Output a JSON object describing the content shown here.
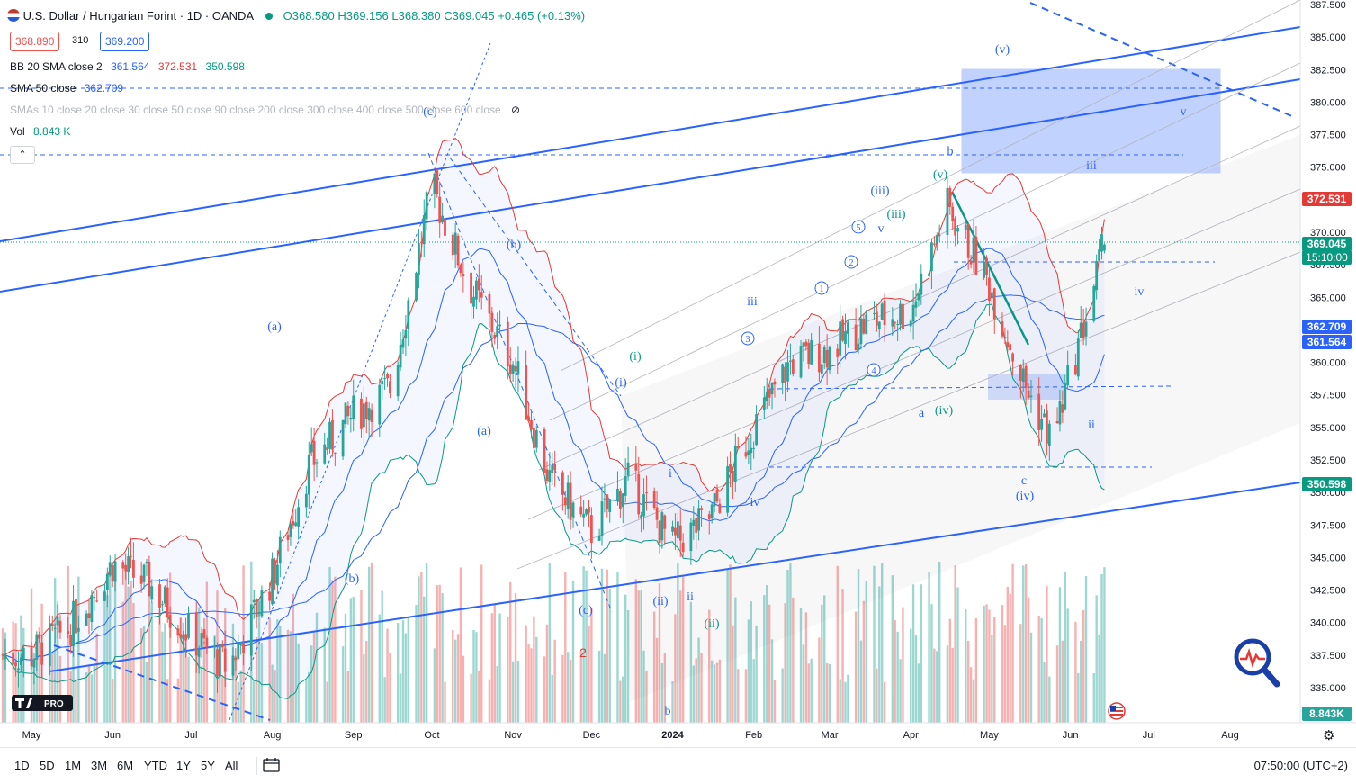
{
  "header": {
    "symbol_title": "U.S. Dollar / Hungarian Forint · 1D · OANDA",
    "open": "O368.580",
    "high": "H369.156",
    "low": "L368.380",
    "close": "C369.045",
    "change": "+0.465 (+0.13%)",
    "bid": "368.890",
    "spread": "310",
    "ask": "369.200"
  },
  "indicators": {
    "bb_label": "BB 20 SMA close 2",
    "bb_mid": "361.564",
    "bb_upper": "372.531",
    "bb_lower": "350.598",
    "sma50_label": "SMA 50 close",
    "sma50_value": "362.709",
    "smas_label": "SMAs 10 close 20 close 30 close 50 close 90 close 200 close 300 close 400 close 500 close 600 close",
    "vol_label": "Vol",
    "vol_value": "8.843 K"
  },
  "price_tags": {
    "bb_upper": "372.531",
    "last": "369.045",
    "countdown": "15:10:00",
    "sma50": "362.709",
    "bb_mid": "361.564",
    "bb_lower": "350.598",
    "volume": "8.843K"
  },
  "toolbar": {
    "timeframes": [
      "1D",
      "5D",
      "1M",
      "3M",
      "6M",
      "YTD",
      "1Y",
      "5Y",
      "All"
    ],
    "clock": "07:50:00 (UTC+2)"
  },
  "colors": {
    "up": "#26a69a",
    "down": "#ef5350",
    "wave": "#2962ff",
    "bb_upper": "#e53935",
    "bb_lower": "#089981",
    "sma": "#2962ff"
  },
  "chart_data": {
    "type": "candlestick",
    "y_axis_ticks": [
      "387.500",
      "385.000",
      "382.500",
      "380.000",
      "377.500",
      "375.000",
      "372.500",
      "370.000",
      "367.500",
      "365.000",
      "362.500",
      "360.000",
      "357.500",
      "355.000",
      "352.500",
      "350.000",
      "347.500",
      "345.000",
      "342.500",
      "340.000",
      "337.500",
      "335.000"
    ],
    "ylim": [
      333.5,
      387.5
    ],
    "x_axis_labels": [
      "May",
      "Jun",
      "Jul",
      "Aug",
      "Sep",
      "Oct",
      "Nov",
      "Dec",
      "2024",
      "Feb",
      "Mar",
      "Apr",
      "May",
      "Jun",
      "Jul",
      "Aug"
    ],
    "close_path": [
      {
        "date": "2023-05-01",
        "close": 337.5
      },
      {
        "date": "2023-05-15",
        "close": 339.5
      },
      {
        "date": "2023-06-01",
        "close": 344.5
      },
      {
        "date": "2023-06-15",
        "close": 343.0
      },
      {
        "date": "2023-07-01",
        "close": 339.0
      },
      {
        "date": "2023-07-15",
        "close": 336.5
      },
      {
        "date": "2023-08-01",
        "close": 343.5
      },
      {
        "date": "2023-08-15",
        "close": 352.0
      },
      {
        "date": "2023-09-01",
        "close": 356.0
      },
      {
        "date": "2023-09-15",
        "close": 358.0
      },
      {
        "date": "2023-10-01",
        "close": 373.5
      },
      {
        "date": "2023-10-15",
        "close": 366.0
      },
      {
        "date": "2023-11-01",
        "close": 360.0
      },
      {
        "date": "2023-11-15",
        "close": 351.0
      },
      {
        "date": "2023-12-01",
        "close": 347.0
      },
      {
        "date": "2023-12-15",
        "close": 351.0
      },
      {
        "date": "2024-01-01",
        "close": 346.0
      },
      {
        "date": "2024-01-15",
        "close": 348.0
      },
      {
        "date": "2024-02-01",
        "close": 355.0
      },
      {
        "date": "2024-02-15",
        "close": 360.0
      },
      {
        "date": "2024-03-01",
        "close": 361.0
      },
      {
        "date": "2024-03-15",
        "close": 363.0
      },
      {
        "date": "2024-04-01",
        "close": 364.0
      },
      {
        "date": "2024-04-15",
        "close": 372.0
      },
      {
        "date": "2024-05-01",
        "close": 366.0
      },
      {
        "date": "2024-05-15",
        "close": 358.0
      },
      {
        "date": "2024-05-25",
        "close": 354.0
      },
      {
        "date": "2024-06-05",
        "close": 362.0
      },
      {
        "date": "2024-06-14",
        "close": 369.045
      }
    ],
    "wave_labels": [
      "(a)",
      "(b)",
      "(c)",
      "(b)",
      "(a)",
      "(c)",
      "(i)",
      "(i)",
      "(ii)",
      "(ii)",
      "i",
      "ii",
      "iii",
      "iv",
      "(iii)",
      "(iii)",
      "v",
      "(iv)",
      "(v)",
      "a",
      "b",
      "c",
      "(iv)",
      "(v)",
      "iii",
      "ii",
      "iv",
      "v",
      "1",
      "2",
      "3",
      "4",
      "5",
      "b"
    ],
    "annotations": [
      "2"
    ]
  }
}
